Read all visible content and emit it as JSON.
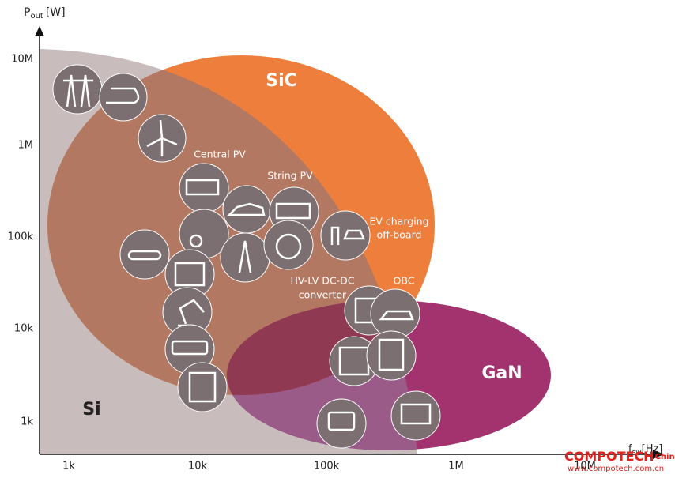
{
  "axes": {
    "y_label": {
      "main": "P",
      "sub": "out",
      "unit": "[W]"
    },
    "x_label": {
      "main": "f",
      "sub": "sw",
      "unit": "[Hz]"
    },
    "y_ticks": [
      "10M",
      "1M",
      "100k",
      "10k",
      "1k"
    ],
    "x_ticks": [
      "1k",
      "10k",
      "100k",
      "1M",
      "10M"
    ]
  },
  "regions": {
    "sic": "SiC",
    "si": "Si",
    "gan": "GaN"
  },
  "labels": {
    "central_pv": "Central PV",
    "string_pv": "String PV",
    "ev_charging": [
      "EV charging",
      "off-board"
    ],
    "dcdc": [
      "HV-LV DC-DC",
      "converter"
    ],
    "obc": "OBC"
  },
  "watermark": {
    "brand": "COMPOTECH",
    "region": "China",
    "url": "www.compotech.com.cn"
  }
}
